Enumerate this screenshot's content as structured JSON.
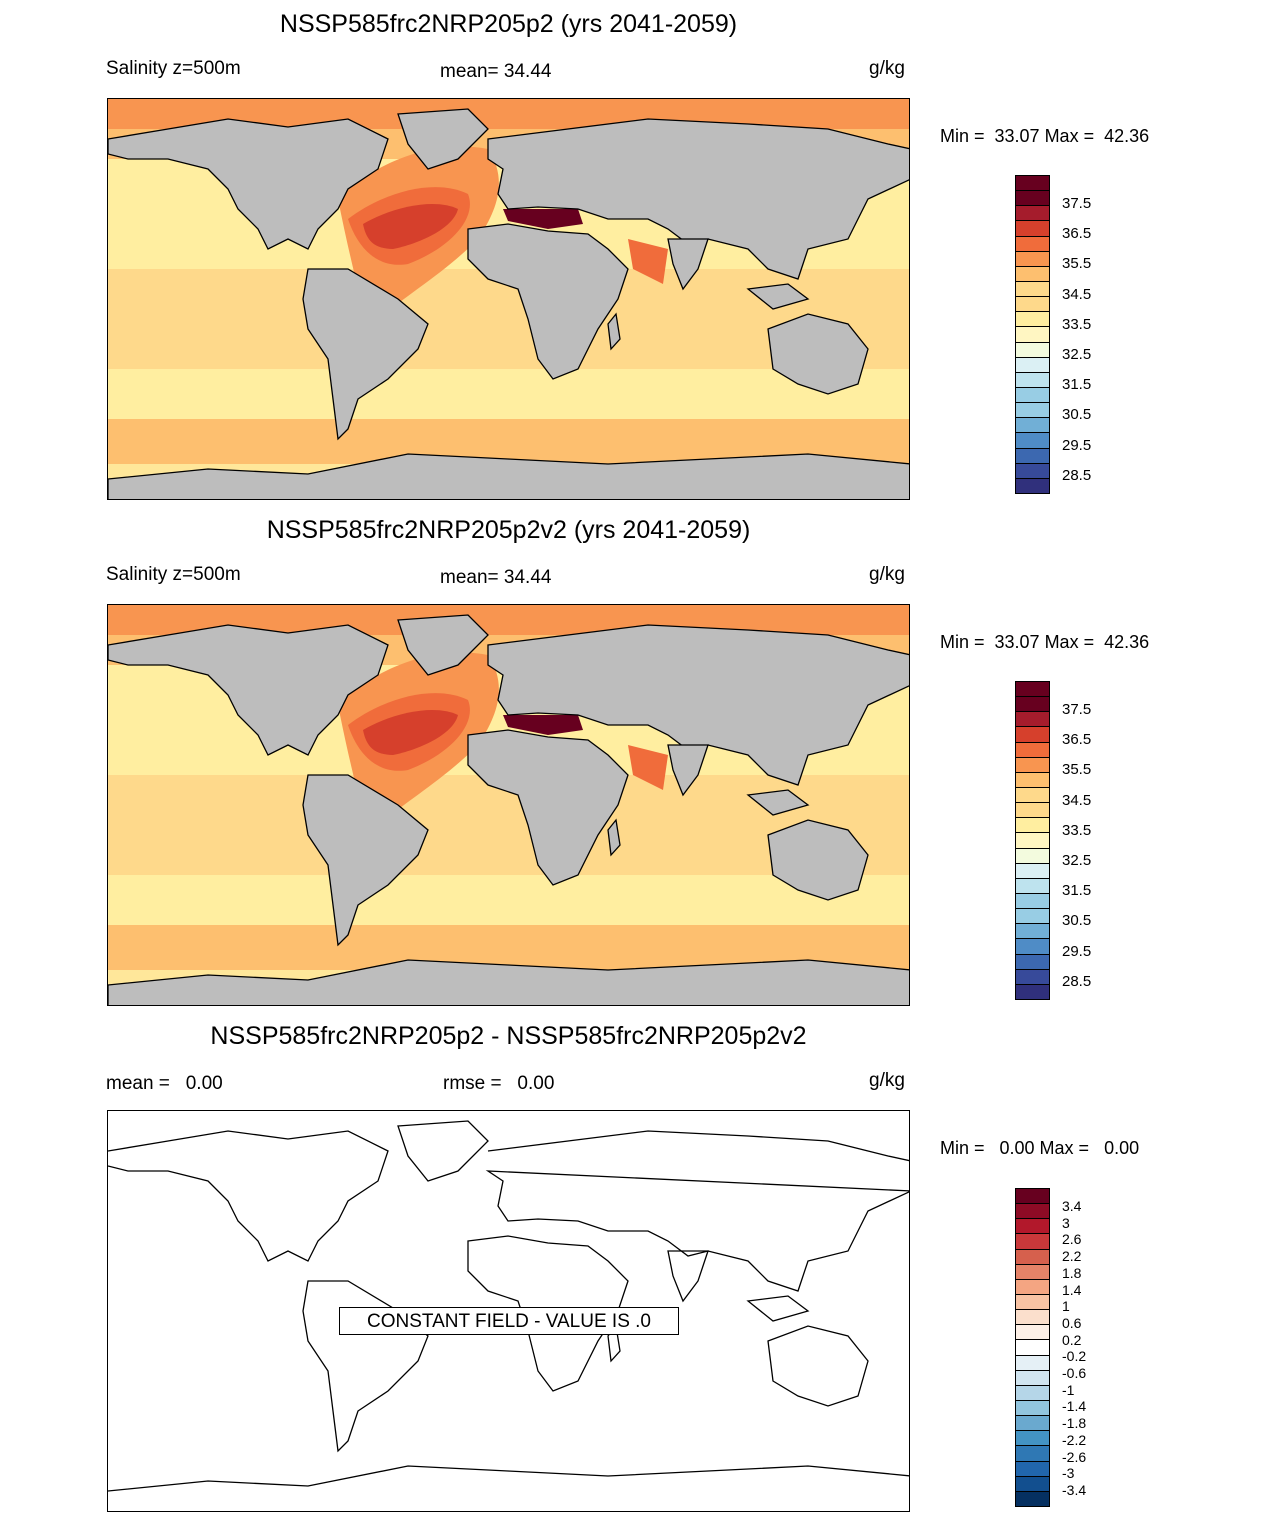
{
  "panels": [
    {
      "title": "NSSP585frc2NRP205p2 (yrs 2041-2059)",
      "left_label": "Salinity z=500m",
      "center_label": "mean=  34.44",
      "units": "g/kg",
      "minmax": "Min =  33.07 Max =  42.36",
      "colorbar_ticks": [
        "37.5",
        "36.5",
        "35.5",
        "34.5",
        "33.5",
        "32.5",
        "31.5",
        "30.5",
        "29.5",
        "28.5"
      ]
    },
    {
      "title": "NSSP585frc2NRP205p2v2 (yrs 2041-2059)",
      "left_label": "Salinity z=500m",
      "center_label": "mean=  34.44",
      "units": "g/kg",
      "minmax": "Min =  33.07 Max =  42.36",
      "colorbar_ticks": [
        "37.5",
        "36.5",
        "35.5",
        "34.5",
        "33.5",
        "32.5",
        "31.5",
        "30.5",
        "29.5",
        "28.5"
      ]
    },
    {
      "title": "NSSP585frc2NRP205p2 - NSSP585frc2NRP205p2v2",
      "left_label": "mean =   0.00",
      "center_label": "rmse =   0.00",
      "units": "g/kg",
      "minmax": "Min =   0.00 Max =   0.00",
      "constant_field": "CONSTANT FIELD - VALUE IS .0",
      "colorbar_ticks": [
        "3.4",
        "3",
        "2.6",
        "2.2",
        "1.8",
        "1.4",
        "1",
        "0.6",
        "0.2",
        "-0.2",
        "-0.6",
        "-1",
        "-1.4",
        "-1.8",
        "-2.2",
        "-2.6",
        "-3",
        "-3.4"
      ]
    }
  ],
  "colors": {
    "land": "#bdbdbd",
    "salinity_scale": [
      "#67001f",
      "#a51c2c",
      "#d6402c",
      "#f06c3b",
      "#f89550",
      "#fdbf6f",
      "#fed98b",
      "#ffeea0",
      "#fff6c2",
      "#f3fbde",
      "#dbf0f4",
      "#bee3ee",
      "#98cde4",
      "#71afd6",
      "#4f8cc6",
      "#3c68b0",
      "#374a9a",
      "#30307c"
    ],
    "diff_scale": [
      "#67001f",
      "#8e0b25",
      "#b2182b",
      "#c9383a",
      "#d6604d",
      "#e58368",
      "#f4a582",
      "#f8c3a4",
      "#fbdfcc",
      "#fdf0e7",
      "#ffffff",
      "#e5f0f6",
      "#d1e5f0",
      "#b5d6e8",
      "#92c5de",
      "#6aa9cf",
      "#4393c3",
      "#2f78b4",
      "#2166ac",
      "#124f8f",
      "#053061"
    ],
    "ocean_base": "#ffe79a"
  }
}
